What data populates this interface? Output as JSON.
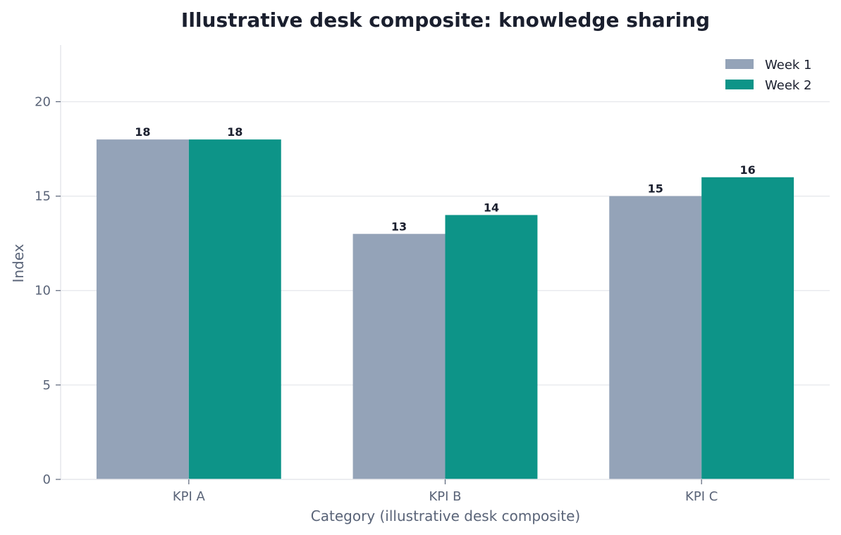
{
  "chart_data": {
    "type": "bar",
    "title": "Illustrative desk composite: knowledge sharing",
    "xlabel": "Category (illustrative desk composite)",
    "ylabel": "Index",
    "categories": [
      "KPI A",
      "KPI B",
      "KPI C"
    ],
    "series": [
      {
        "name": "Week 1",
        "values": [
          18,
          13,
          15
        ],
        "color": "#94a3b8"
      },
      {
        "name": "Week 2",
        "values": [
          18,
          14,
          16
        ],
        "color": "#0d9488"
      }
    ],
    "ylim": [
      0,
      23
    ],
    "yticks": [
      0,
      5,
      10,
      15,
      20
    ],
    "grid": "horizontal",
    "legend_position": "top-right"
  }
}
